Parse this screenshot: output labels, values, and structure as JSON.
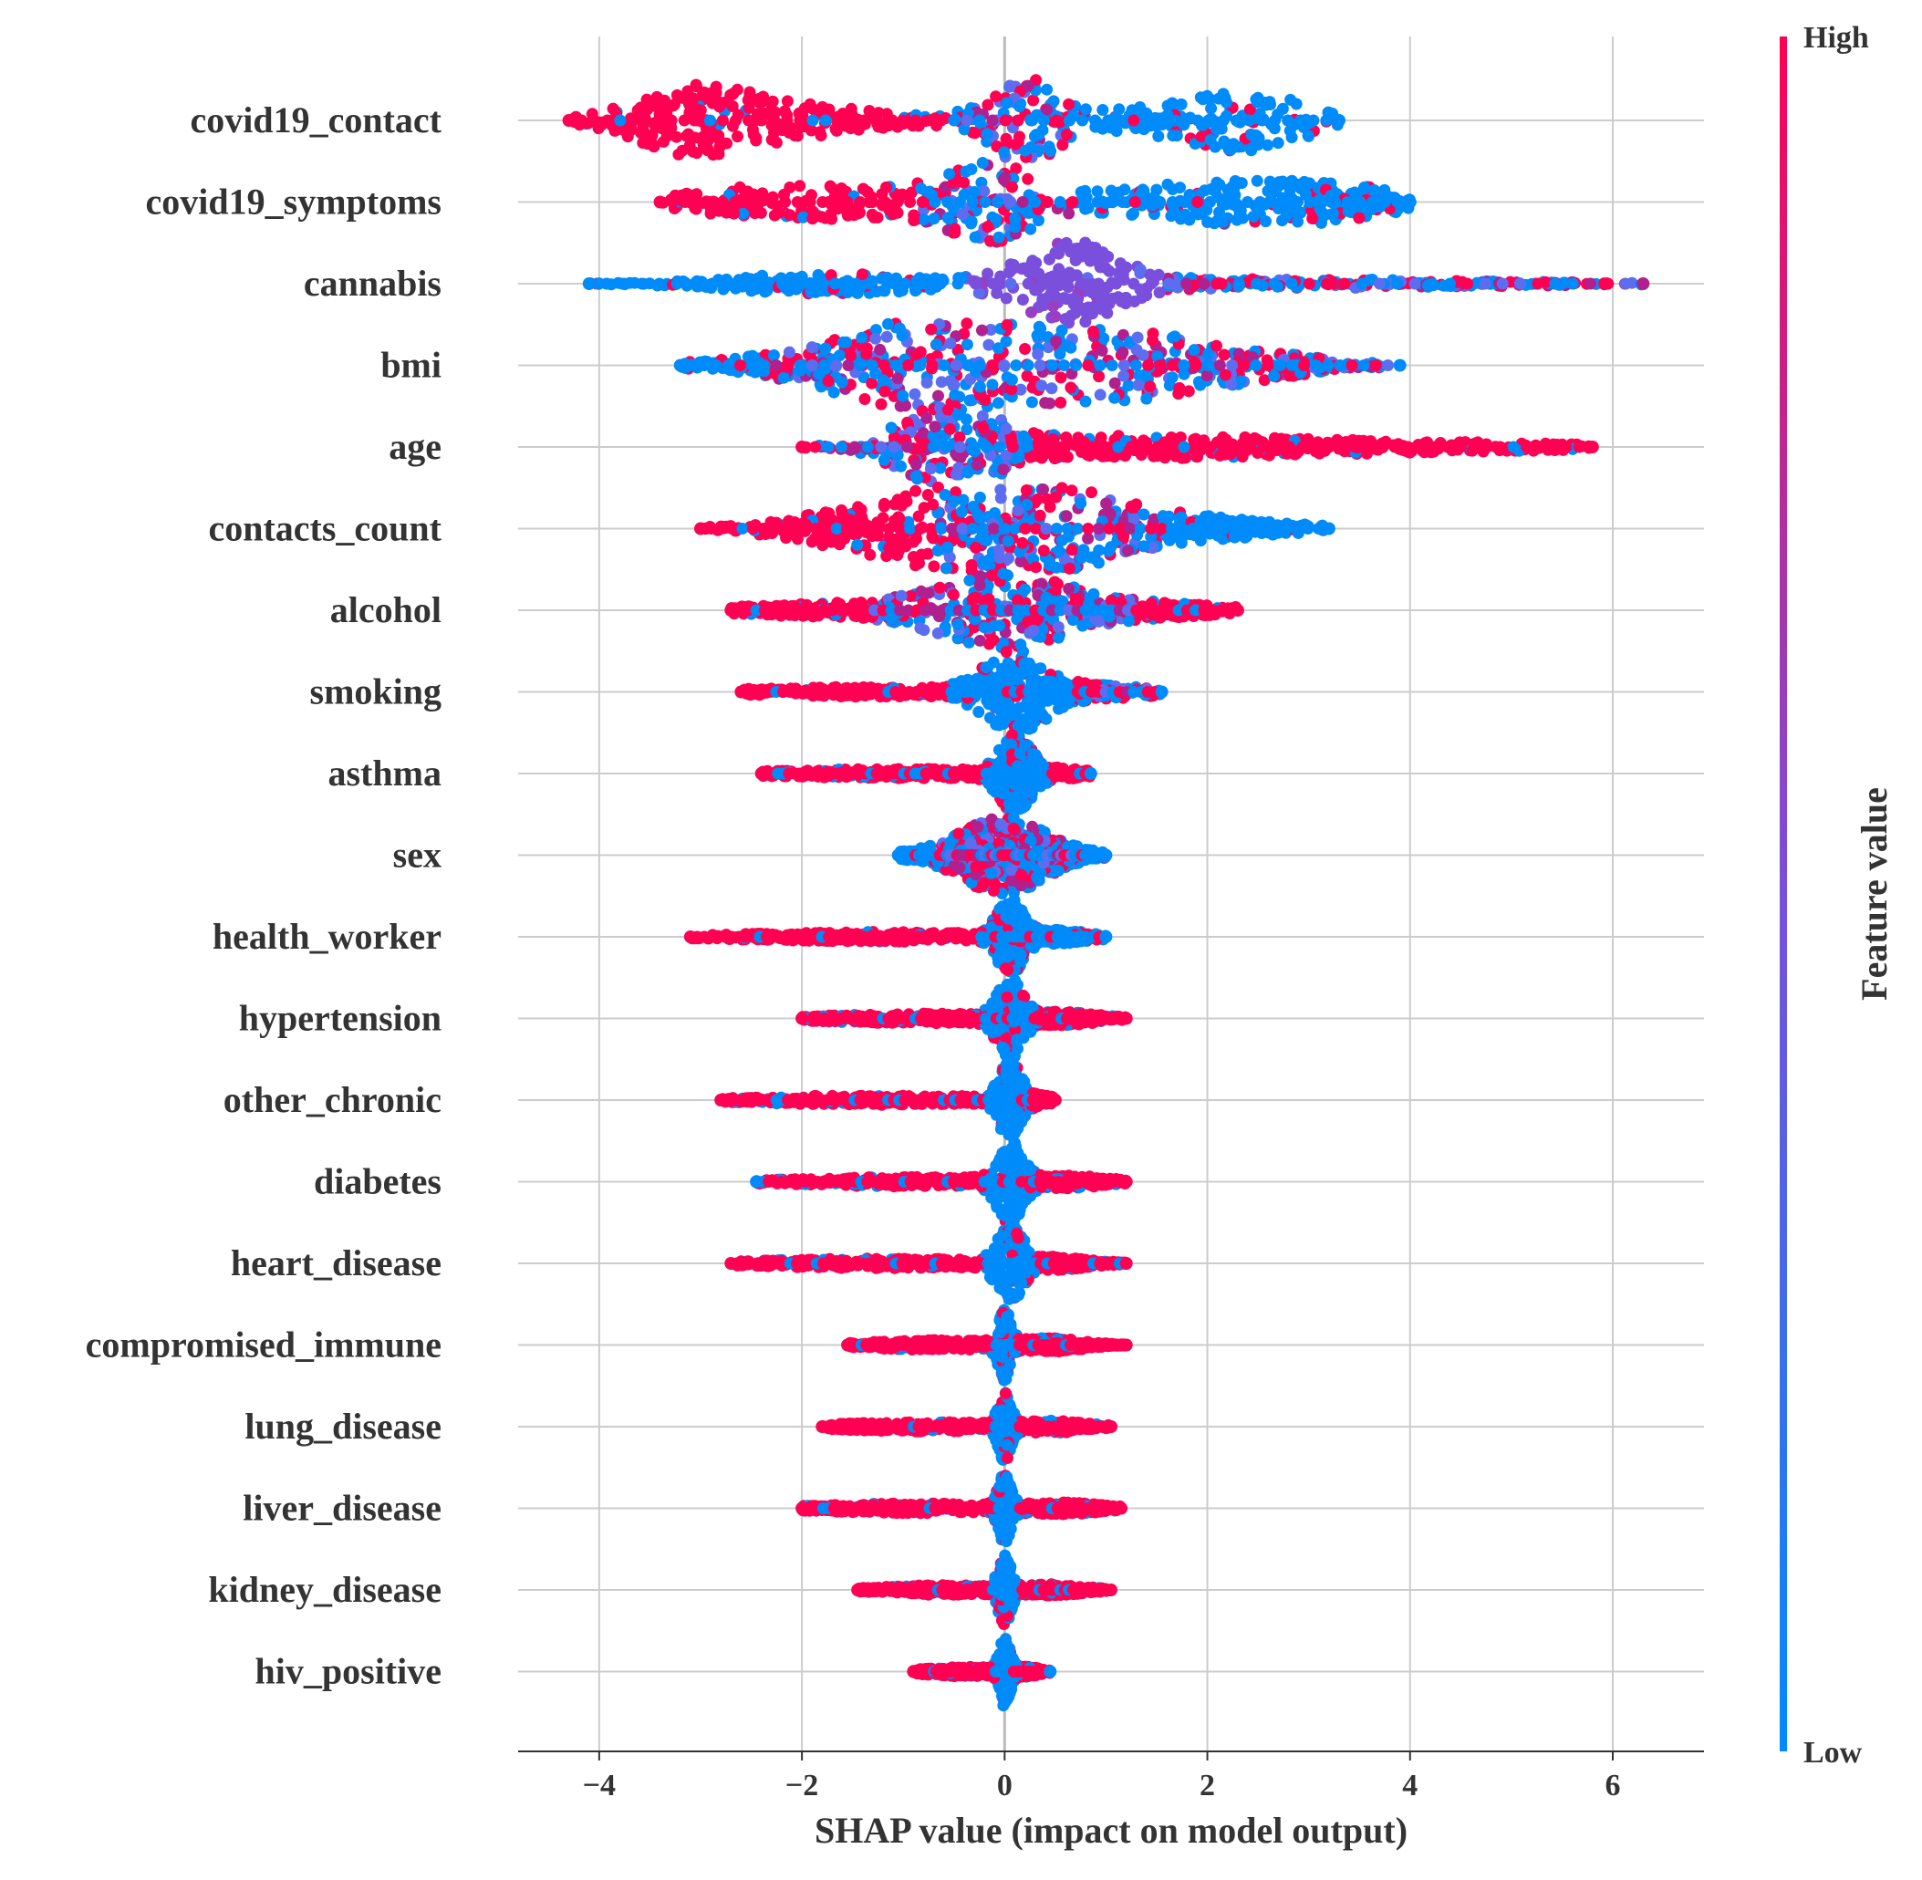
{
  "chart_data": {
    "type": "scatter",
    "subtype": "shap-beeswarm",
    "xlabel": "SHAP value (impact on model output)",
    "xlim": [
      -4.8,
      6.9
    ],
    "xticks": [
      -4,
      -2,
      0,
      2,
      4,
      6
    ],
    "xtick_labels": [
      "−4",
      "−2",
      "0",
      "2",
      "4",
      "6"
    ],
    "colorbar": {
      "title": "Feature value",
      "high_label": "High",
      "low_label": "Low",
      "high_color": "#ff0052",
      "low_color": "#008bfb"
    },
    "features": [
      {
        "name": "covid19_contact",
        "min": -4.3,
        "max": 3.3,
        "lobes": [
          [
            -3.1,
            0.55,
            0.22,
            "high"
          ],
          [
            -2.2,
            0.9,
            0.12,
            "high"
          ],
          [
            2.4,
            0.55,
            0.22,
            "low"
          ],
          [
            1.0,
            1.0,
            0.08,
            "low"
          ],
          [
            0.2,
            0.3,
            0.3,
            "mixed"
          ]
        ]
      },
      {
        "name": "covid19_symptoms",
        "min": -3.4,
        "max": 4.0,
        "lobes": [
          [
            -2.0,
            1.1,
            0.15,
            "high"
          ],
          [
            -0.1,
            0.45,
            0.28,
            "mixed"
          ],
          [
            2.3,
            1.0,
            0.18,
            "low"
          ],
          [
            3.4,
            0.5,
            0.05,
            "low"
          ]
        ]
      },
      {
        "name": "cannabis",
        "min": -4.1,
        "max": 6.3,
        "lobes": [
          [
            0.65,
            0.45,
            0.32,
            "mid"
          ],
          [
            -1.8,
            0.9,
            0.08,
            "low"
          ],
          [
            2.5,
            2.0,
            0.04,
            "mixed"
          ]
        ]
      },
      {
        "name": "bmi",
        "min": -3.2,
        "max": 3.9,
        "lobes": [
          [
            -0.8,
            0.8,
            0.32,
            "mixed"
          ],
          [
            1.0,
            0.9,
            0.28,
            "mixed"
          ],
          [
            2.5,
            0.7,
            0.06,
            "mixed"
          ],
          [
            -2.0,
            0.9,
            0.05,
            "low"
          ]
        ]
      },
      {
        "name": "age",
        "min": -2.0,
        "max": 5.8,
        "lobes": [
          [
            -0.55,
            0.45,
            0.32,
            "mixed"
          ],
          [
            1.2,
            1.3,
            0.08,
            "high"
          ],
          [
            4.0,
            1.8,
            0.04,
            "high"
          ]
        ]
      },
      {
        "name": "contacts_count",
        "min": -3.0,
        "max": 3.2,
        "lobes": [
          [
            -1.0,
            0.9,
            0.18,
            "high"
          ],
          [
            0.2,
            0.8,
            0.32,
            "mixed"
          ],
          [
            1.8,
            0.9,
            0.08,
            "low"
          ]
        ]
      },
      {
        "name": "alcohol",
        "min": -2.7,
        "max": 2.3,
        "lobes": [
          [
            0.0,
            0.65,
            0.3,
            "mixed"
          ],
          [
            -1.8,
            0.8,
            0.05,
            "high"
          ],
          [
            1.6,
            0.6,
            0.05,
            "high"
          ]
        ]
      },
      {
        "name": "smoking",
        "min": -2.6,
        "max": 1.55,
        "lobes": [
          [
            0.1,
            0.3,
            0.32,
            "low"
          ],
          [
            -1.5,
            1.1,
            0.04,
            "high"
          ],
          [
            1.0,
            0.5,
            0.05,
            "mixed"
          ]
        ]
      },
      {
        "name": "asthma",
        "min": -2.4,
        "max": 0.85,
        "lobes": [
          [
            0.1,
            0.15,
            0.28,
            "low"
          ],
          [
            -1.0,
            1.2,
            0.04,
            "high"
          ],
          [
            0.5,
            0.3,
            0.03,
            "high"
          ]
        ]
      },
      {
        "name": "sex",
        "min": -1.05,
        "max": 1.0,
        "lobes": [
          [
            0.0,
            0.35,
            0.3,
            "mixed"
          ],
          [
            -0.6,
            0.4,
            0.05,
            "low"
          ],
          [
            0.6,
            0.3,
            0.04,
            "low"
          ]
        ]
      },
      {
        "name": "health_worker",
        "min": -3.1,
        "max": 1.0,
        "lobes": [
          [
            0.05,
            0.12,
            0.28,
            "low"
          ],
          [
            -1.2,
            1.3,
            0.04,
            "high"
          ],
          [
            0.5,
            0.3,
            0.04,
            "low"
          ]
        ]
      },
      {
        "name": "hypertension",
        "min": -2.0,
        "max": 1.2,
        "lobes": [
          [
            0.05,
            0.12,
            0.3,
            "low"
          ],
          [
            -0.8,
            1.0,
            0.04,
            "high"
          ],
          [
            0.6,
            0.3,
            0.04,
            "high"
          ]
        ]
      },
      {
        "name": "other_chronic",
        "min": -2.8,
        "max": 0.5,
        "lobes": [
          [
            0.05,
            0.1,
            0.3,
            "low"
          ],
          [
            -1.2,
            1.2,
            0.04,
            "high"
          ],
          [
            0.3,
            0.15,
            0.03,
            "high"
          ]
        ]
      },
      {
        "name": "diabetes",
        "min": -2.45,
        "max": 1.2,
        "lobes": [
          [
            0.05,
            0.12,
            0.3,
            "low"
          ],
          [
            -0.9,
            1.1,
            0.04,
            "high"
          ],
          [
            0.6,
            0.35,
            0.04,
            "high"
          ]
        ]
      },
      {
        "name": "heart_disease",
        "min": -2.7,
        "max": 1.2,
        "lobes": [
          [
            0.05,
            0.12,
            0.3,
            "low"
          ],
          [
            -1.2,
            1.2,
            0.04,
            "high"
          ],
          [
            0.5,
            0.3,
            0.04,
            "high"
          ]
        ]
      },
      {
        "name": "compromised_immune",
        "min": -1.55,
        "max": 1.2,
        "lobes": [
          [
            0.0,
            0.06,
            0.25,
            "low"
          ],
          [
            -0.6,
            0.8,
            0.04,
            "high"
          ],
          [
            0.5,
            0.3,
            0.04,
            "high"
          ]
        ]
      },
      {
        "name": "lung_disease",
        "min": -1.8,
        "max": 1.05,
        "lobes": [
          [
            0.0,
            0.06,
            0.25,
            "low"
          ],
          [
            -0.8,
            0.8,
            0.04,
            "high"
          ],
          [
            0.5,
            0.3,
            0.04,
            "high"
          ]
        ]
      },
      {
        "name": "liver_disease",
        "min": -2.0,
        "max": 1.15,
        "lobes": [
          [
            0.0,
            0.06,
            0.25,
            "low"
          ],
          [
            -0.9,
            0.9,
            0.04,
            "high"
          ],
          [
            0.6,
            0.35,
            0.04,
            "high"
          ]
        ]
      },
      {
        "name": "kidney_disease",
        "min": -1.45,
        "max": 1.05,
        "lobes": [
          [
            0.0,
            0.06,
            0.25,
            "low"
          ],
          [
            -0.6,
            0.6,
            0.04,
            "high"
          ],
          [
            0.5,
            0.3,
            0.04,
            "high"
          ]
        ]
      },
      {
        "name": "hiv_positive",
        "min": -0.9,
        "max": 0.45,
        "lobes": [
          [
            0.0,
            0.05,
            0.25,
            "low"
          ],
          [
            -0.4,
            0.4,
            0.04,
            "high"
          ],
          [
            0.2,
            0.15,
            0.03,
            "high"
          ]
        ]
      }
    ]
  }
}
